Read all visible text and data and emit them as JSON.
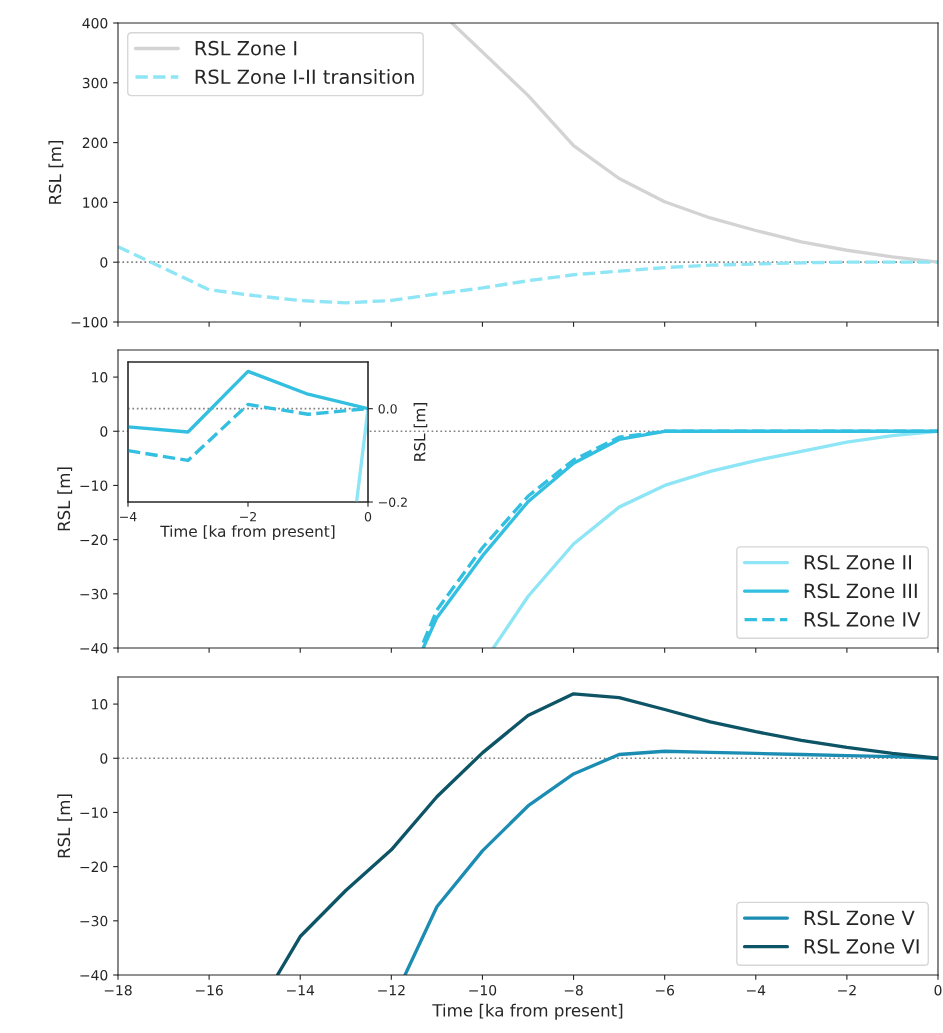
{
  "chart_data": [
    {
      "type": "line",
      "ylabel": "RSL [m]",
      "xlim": [
        -18,
        0
      ],
      "ylim": [
        -100,
        400
      ],
      "xticks": [
        {
          "value": -18,
          "label": null
        },
        {
          "value": -16,
          "label": null
        },
        {
          "value": -14,
          "label": null
        },
        {
          "value": -12,
          "label": null
        },
        {
          "value": -10,
          "label": null
        },
        {
          "value": -8,
          "label": null
        },
        {
          "value": -6,
          "label": null
        },
        {
          "value": -4,
          "label": null
        },
        {
          "value": -2,
          "label": null
        },
        {
          "value": 0,
          "label": null
        }
      ],
      "yticks": [
        {
          "value": -100,
          "label": "−100"
        },
        0,
        100,
        200,
        300,
        400
      ],
      "tick_labels": "y",
      "grid": false,
      "legend": "top left",
      "ref_lines": [
        {
          "axis": "y",
          "value": 0,
          "label": null,
          "color": "#808080",
          "line_style": "dotted"
        }
      ],
      "series": [
        {
          "name": "RSL Zone I",
          "color": "#d3d3d3",
          "line_style": "solid",
          "x": [
            -10.67,
            -9,
            -8,
            -7,
            -6,
            -5,
            -4,
            -3,
            -2,
            -1,
            0
          ],
          "values": [
            400,
            279,
            195,
            140,
            101,
            74,
            53,
            34,
            20,
            9,
            0
          ]
        },
        {
          "name": "RSL Zone I-II transition",
          "color": "#8de5f5",
          "line_style": "dashed",
          "x": [
            -18,
            -16,
            -15,
            -14,
            -13,
            -12,
            -11,
            -10,
            -9,
            -8,
            -7,
            -6,
            -5,
            -4,
            -3,
            -2,
            -1,
            0
          ],
          "values": [
            26,
            -46,
            -56,
            -64,
            -68,
            -64,
            -53,
            -43,
            -31,
            -21,
            -15,
            -9,
            -5,
            -3,
            -1,
            0,
            0,
            0
          ]
        }
      ]
    },
    {
      "type": "line",
      "ylabel": "RSL [m]",
      "xlim": [
        -18,
        0
      ],
      "ylim": [
        -40,
        15
      ],
      "xticks": [
        {
          "value": -18,
          "label": null
        },
        {
          "value": -16,
          "label": null
        },
        {
          "value": -14,
          "label": null
        },
        {
          "value": -12,
          "label": null
        },
        {
          "value": -10,
          "label": null
        },
        {
          "value": -8,
          "label": null
        },
        {
          "value": -6,
          "label": null
        },
        {
          "value": -4,
          "label": null
        },
        {
          "value": -2,
          "label": null
        },
        {
          "value": 0,
          "label": null
        }
      ],
      "yticks": [
        {
          "value": -40,
          "label": "−40"
        },
        {
          "value": -30,
          "label": "−30"
        },
        {
          "value": -20,
          "label": "−20"
        },
        {
          "value": -10,
          "label": "−10"
        },
        0,
        10
      ],
      "tick_labels": "y",
      "grid": false,
      "legend": "bottom right",
      "ref_lines": [
        {
          "axis": "y",
          "value": 0,
          "label": null,
          "color": "#808080",
          "line_style": "dotted"
        }
      ],
      "series": [
        {
          "name": "RSL Zone II",
          "color": "#8de5f5",
          "line_style": "solid",
          "x": [
            -9.76,
            -9,
            -8,
            -7,
            -6,
            -5,
            -4,
            -3,
            -2,
            -1,
            0
          ],
          "values": [
            -40,
            -30.5,
            -20.8,
            -14,
            -10,
            -7.4,
            -5.4,
            -3.7,
            -2,
            -0.8,
            0
          ]
        },
        {
          "name": "RSL Zone III",
          "color": "#33bfe0",
          "line_style": "solid",
          "x": [
            -11.3,
            -11,
            -10,
            -9,
            -8,
            -7,
            -6,
            -5,
            -4,
            -3,
            -2,
            -1,
            0
          ],
          "values": [
            -40,
            -34.4,
            -23,
            -13,
            -5.9,
            -1.5,
            0,
            0,
            0,
            0,
            0,
            0,
            0
          ]
        },
        {
          "name": "RSL Zone IV",
          "color": "#33bfe0",
          "line_style": "dashed",
          "x": [
            -11.3,
            -11,
            -10,
            -9,
            -8,
            -7,
            -6,
            -5,
            -4,
            -3,
            -2,
            -1,
            0
          ],
          "values": [
            -39,
            -33,
            -21.5,
            -12,
            -5.3,
            -1.1,
            0,
            0,
            0,
            0,
            0,
            0,
            0
          ]
        }
      ]
    },
    {
      "type": "line",
      "xlabel": "Time [ka from present]",
      "y2label": "RSL [m]",
      "xlim": [
        -4,
        0
      ],
      "y2lim": [
        -0.2,
        0.1
      ],
      "xticks": [
        {
          "value": -4,
          "label": "−4"
        },
        {
          "value": -2,
          "label": "−2"
        },
        0
      ],
      "y2ticks": [
        {
          "value": -0.2,
          "label": "−0.2"
        },
        {
          "value": 0,
          "label": "0.0"
        }
      ],
      "grid": false,
      "ref_lines": [
        {
          "axis": "y2",
          "value": 0,
          "label": null,
          "color": "#808080",
          "line_style": "dotted"
        }
      ],
      "series": [
        {
          "color": "#8de5f5",
          "line_style": "solid",
          "axis": "y2",
          "x": [
            -0.19,
            0
          ],
          "values": [
            -0.2,
            0
          ]
        },
        {
          "color": "#33bfe0",
          "line_style": "solid",
          "axis": "y2",
          "x": [
            -4,
            -3,
            -2,
            -1,
            0
          ],
          "values": [
            -0.039,
            -0.05,
            0.08,
            0.031,
            0
          ]
        },
        {
          "color": "#33bfe0",
          "line_style": "dashed",
          "axis": "y2",
          "x": [
            -4,
            -3,
            -2,
            -1,
            0
          ],
          "values": [
            -0.09,
            -0.111,
            0.009,
            -0.012,
            0
          ]
        }
      ]
    },
    {
      "type": "line",
      "xlabel": "Time [ka from present]",
      "ylabel": "RSL [m]",
      "xlim": [
        -18,
        0
      ],
      "ylim": [
        -40,
        15
      ],
      "xticks": [
        {
          "value": -18,
          "label": "−18"
        },
        {
          "value": -16,
          "label": "−16"
        },
        {
          "value": -14,
          "label": "−14"
        },
        {
          "value": -12,
          "label": "−12"
        },
        {
          "value": -10,
          "label": "−10"
        },
        {
          "value": -8,
          "label": "−8"
        },
        {
          "value": -6,
          "label": "−6"
        },
        {
          "value": -4,
          "label": "−4"
        },
        {
          "value": -2,
          "label": "−2"
        },
        0
      ],
      "yticks": [
        {
          "value": -40,
          "label": "−40"
        },
        {
          "value": -30,
          "label": "−30"
        },
        {
          "value": -20,
          "label": "−20"
        },
        {
          "value": -10,
          "label": "−10"
        },
        0,
        10
      ],
      "grid": false,
      "legend": "bottom right",
      "ref_lines": [
        {
          "axis": "y",
          "value": 0,
          "label": null,
          "color": "#808080",
          "line_style": "dotted"
        }
      ],
      "series": [
        {
          "name": "RSL Zone V",
          "color": "#1b8db3",
          "line_style": "solid",
          "x": [
            -11.7,
            -11,
            -10,
            -9,
            -8,
            -7,
            -6,
            -5,
            -4,
            -3,
            -2,
            -1,
            0
          ],
          "values": [
            -40,
            -27.4,
            -17.1,
            -8.8,
            -2.9,
            0.7,
            1.3,
            1.1,
            0.9,
            0.7,
            0.5,
            0.3,
            0
          ]
        },
        {
          "name": "RSL Zone VI",
          "color": "#0d5566",
          "line_style": "solid",
          "x": [
            -14.5,
            -14,
            -13,
            -12,
            -11,
            -10,
            -9,
            -8,
            -7,
            -6,
            -5,
            -4,
            -3,
            -2,
            -1,
            0
          ],
          "values": [
            -40,
            -32.9,
            -24.4,
            -16.9,
            -7.1,
            1.0,
            7.9,
            11.9,
            11.2,
            9.0,
            6.7,
            4.9,
            3.3,
            2.0,
            0.9,
            0
          ]
        }
      ]
    }
  ]
}
